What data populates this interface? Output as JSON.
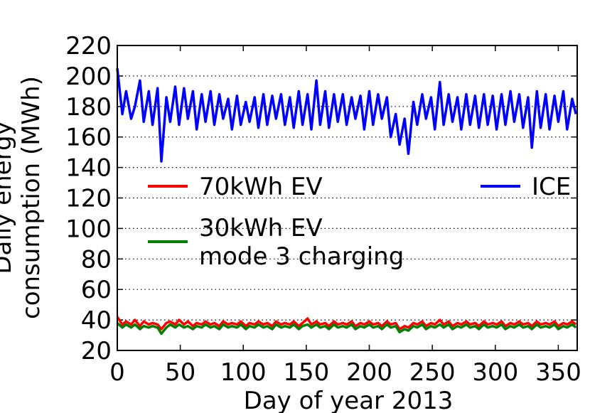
{
  "chart_data": {
    "type": "line",
    "xlabel": "Day of year 2013",
    "ylabel": "Daily energy\nconsumption (MWh)",
    "xlim": [
      0,
      365
    ],
    "xticks": [
      0,
      50,
      100,
      150,
      200,
      250,
      300,
      350
    ],
    "ylim": [
      20,
      220
    ],
    "yticks": [
      20,
      40,
      60,
      80,
      100,
      120,
      140,
      160,
      180,
      200,
      220
    ],
    "grid": true,
    "legend": "center",
    "x": [
      0,
      4,
      7,
      11,
      14,
      18,
      21,
      25,
      28,
      32,
      35,
      39,
      42,
      46,
      49,
      53,
      56,
      60,
      63,
      67,
      70,
      74,
      77,
      81,
      84,
      88,
      91,
      95,
      98,
      102,
      105,
      109,
      112,
      116,
      119,
      123,
      126,
      130,
      133,
      137,
      140,
      144,
      147,
      151,
      154,
      158,
      161,
      165,
      168,
      172,
      175,
      179,
      182,
      186,
      189,
      193,
      196,
      200,
      203,
      207,
      210,
      214,
      217,
      221,
      224,
      228,
      231,
      235,
      238,
      242,
      245,
      249,
      252,
      256,
      259,
      263,
      266,
      270,
      273,
      277,
      280,
      284,
      287,
      291,
      294,
      298,
      301,
      305,
      308,
      312,
      315,
      319,
      322,
      326,
      329,
      333,
      336,
      340,
      343,
      347,
      350,
      354,
      357,
      361,
      364
    ],
    "series": [
      {
        "name": "70kWh EV",
        "color": "#ff0000",
        "values": [
          42,
          37,
          39,
          37,
          40,
          36,
          39,
          37,
          38,
          37,
          34,
          38,
          39,
          37,
          40,
          37,
          39,
          36,
          38,
          37,
          39,
          37,
          38,
          36,
          39,
          37,
          38,
          37,
          39,
          36,
          38,
          37,
          39,
          37,
          38,
          36,
          39,
          37,
          38,
          37,
          39,
          36,
          38,
          41,
          37,
          39,
          37,
          38,
          36,
          39,
          37,
          38,
          37,
          39,
          36,
          38,
          37,
          39,
          37,
          38,
          36,
          39,
          37,
          38,
          34,
          36,
          35,
          38,
          37,
          39,
          36,
          38,
          37,
          40,
          37,
          39,
          36,
          38,
          37,
          39,
          37,
          38,
          36,
          39,
          37,
          38,
          37,
          39,
          36,
          38,
          37,
          39,
          37,
          38,
          36,
          39,
          37,
          38,
          37,
          39,
          36,
          38,
          37,
          39,
          37
        ]
      },
      {
        "name": "30kWh EV\nmode 3 charging",
        "color": "#008000",
        "values": [
          38,
          35,
          37,
          35,
          37,
          34,
          36,
          35,
          36,
          35,
          31,
          35,
          37,
          35,
          37,
          35,
          36,
          34,
          36,
          35,
          37,
          35,
          36,
          34,
          37,
          35,
          36,
          35,
          37,
          34,
          36,
          35,
          37,
          35,
          36,
          34,
          37,
          35,
          36,
          35,
          37,
          34,
          36,
          37,
          35,
          37,
          35,
          36,
          34,
          37,
          35,
          36,
          35,
          37,
          34,
          36,
          35,
          37,
          35,
          36,
          34,
          37,
          35,
          36,
          32,
          34,
          33,
          36,
          35,
          37,
          34,
          36,
          35,
          37,
          35,
          37,
          34,
          36,
          35,
          37,
          35,
          36,
          34,
          37,
          35,
          36,
          35,
          37,
          34,
          36,
          35,
          37,
          35,
          36,
          34,
          37,
          35,
          36,
          35,
          37,
          34,
          36,
          35,
          37,
          35
        ]
      },
      {
        "name": "ICE",
        "color": "#0000ff",
        "values": [
          205,
          175,
          190,
          172,
          180,
          197,
          170,
          190,
          168,
          192,
          144,
          186,
          170,
          193,
          168,
          192,
          172,
          190,
          165,
          188,
          170,
          190,
          168,
          188,
          172,
          185,
          165,
          187,
          168,
          183,
          170,
          186,
          166,
          188,
          168,
          187,
          172,
          188,
          168,
          186,
          166,
          190,
          168,
          188,
          165,
          197,
          168,
          190,
          166,
          188,
          170,
          188,
          168,
          186,
          172,
          187,
          165,
          190,
          168,
          188,
          172,
          186,
          160,
          175,
          155,
          172,
          149,
          183,
          168,
          188,
          172,
          186,
          165,
          196,
          168,
          188,
          170,
          186,
          165,
          188,
          168,
          187,
          166,
          188,
          168,
          187,
          165,
          188,
          168,
          190,
          170,
          188,
          166,
          186,
          153,
          190,
          166,
          188,
          165,
          187,
          170,
          190,
          165,
          185,
          175
        ]
      }
    ]
  }
}
